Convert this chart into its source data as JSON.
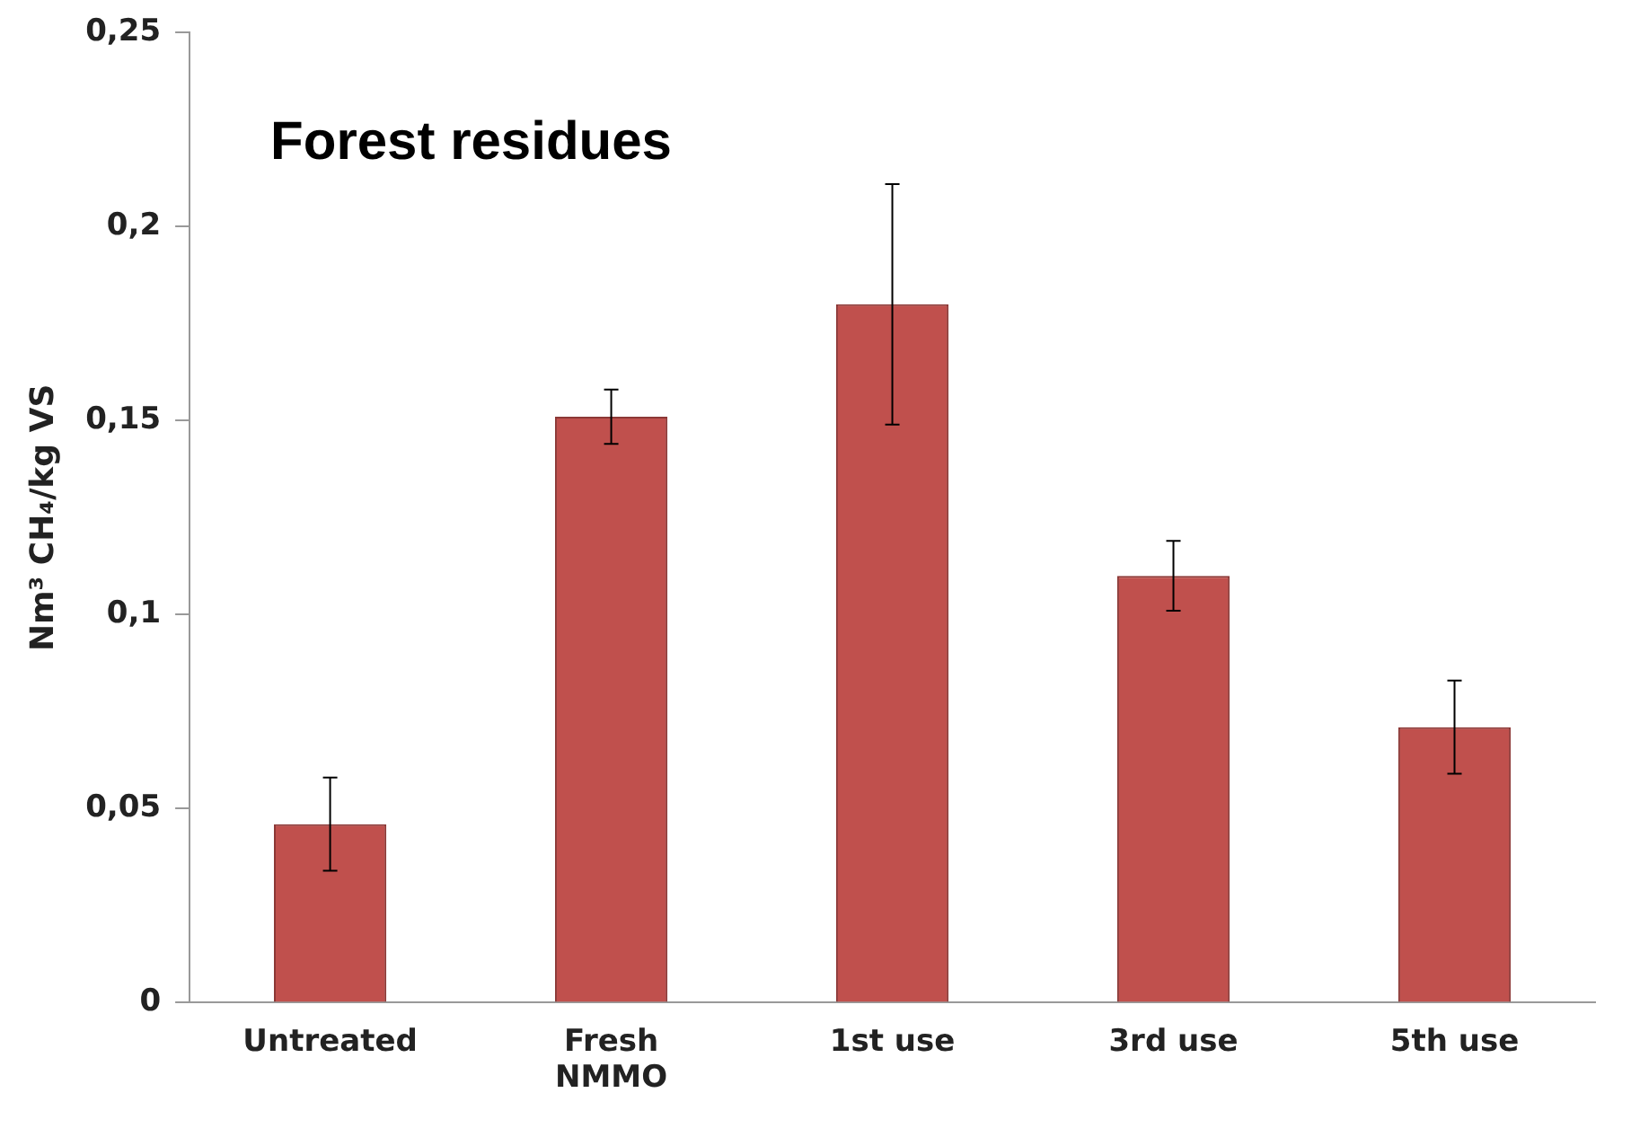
{
  "chart_data": {
    "type": "bar",
    "title": "Forest residues",
    "ylabel": "Nm³ CH₄/kg VS",
    "categories": [
      "Untreated",
      "Fresh NMMO",
      "1st use",
      "3rd use",
      "5th use"
    ],
    "values": [
      0.046,
      0.151,
      0.18,
      0.11,
      0.071
    ],
    "errors": [
      0.012,
      0.007,
      0.031,
      0.009,
      0.012
    ],
    "color": "#c0504d",
    "ylim": [
      0,
      0.25
    ],
    "yticks": [
      0,
      {
        "value": 0.05,
        "label": "0,05"
      },
      {
        "value": 0.1,
        "label": "0,1"
      },
      {
        "value": 0.15,
        "label": "0,15"
      },
      {
        "value": 0.2,
        "label": "0,2"
      },
      {
        "value": 0.25,
        "label": "0,25"
      }
    ],
    "grid": false
  }
}
